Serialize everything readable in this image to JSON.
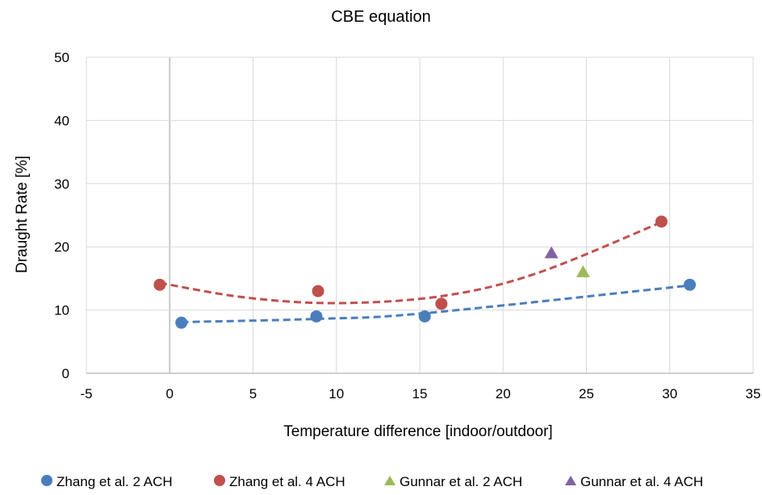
{
  "chart_data": {
    "type": "scatter",
    "title": "CBE equation",
    "xlabel": "Temperature difference [indoor/outdoor]",
    "ylabel": "Draught Rate [%]",
    "xlim": [
      -5,
      35
    ],
    "ylim": [
      0,
      50
    ],
    "xticks": [
      "-5",
      "0",
      "5",
      "10",
      "15",
      "20",
      "25",
      "30",
      "35"
    ],
    "yticks": [
      "0",
      "10",
      "20",
      "30",
      "40",
      "50"
    ],
    "grid": true,
    "legend_position": "bottom",
    "series": [
      {
        "name": "Zhang et al. 2 ACH",
        "marker": "circle",
        "color": "#4A7EBB",
        "points": [
          [
            0.7,
            8
          ],
          [
            8.8,
            9
          ],
          [
            15.3,
            9
          ],
          [
            31.2,
            14
          ]
        ],
        "trendline": {
          "type": "polynomial",
          "style": "dashed",
          "x": [
            0.7,
            8.8,
            15.3,
            31.2
          ],
          "y": [
            8.1,
            8.6,
            9.5,
            13.9
          ]
        }
      },
      {
        "name": "Zhang et al. 4 ACH",
        "marker": "circle",
        "color": "#C0504D",
        "points": [
          [
            -0.6,
            14
          ],
          [
            8.9,
            13
          ],
          [
            16.3,
            11
          ],
          [
            29.5,
            24
          ]
        ],
        "trendline": {
          "type": "polynomial",
          "style": "dashed",
          "x": [
            -0.6,
            4.5,
            10,
            16.3,
            22,
            29.5
          ],
          "y": [
            14.3,
            12.0,
            11.1,
            12.2,
            15.8,
            23.9
          ]
        }
      },
      {
        "name": "Gunnar et al. 2 ACH",
        "marker": "triangle",
        "color": "#9BBB59",
        "points": [
          [
            24.8,
            16
          ]
        ]
      },
      {
        "name": "Gunnar et al. 4 ACH",
        "marker": "triangle",
        "color": "#8064A2",
        "points": [
          [
            22.9,
            19
          ]
        ]
      }
    ]
  }
}
